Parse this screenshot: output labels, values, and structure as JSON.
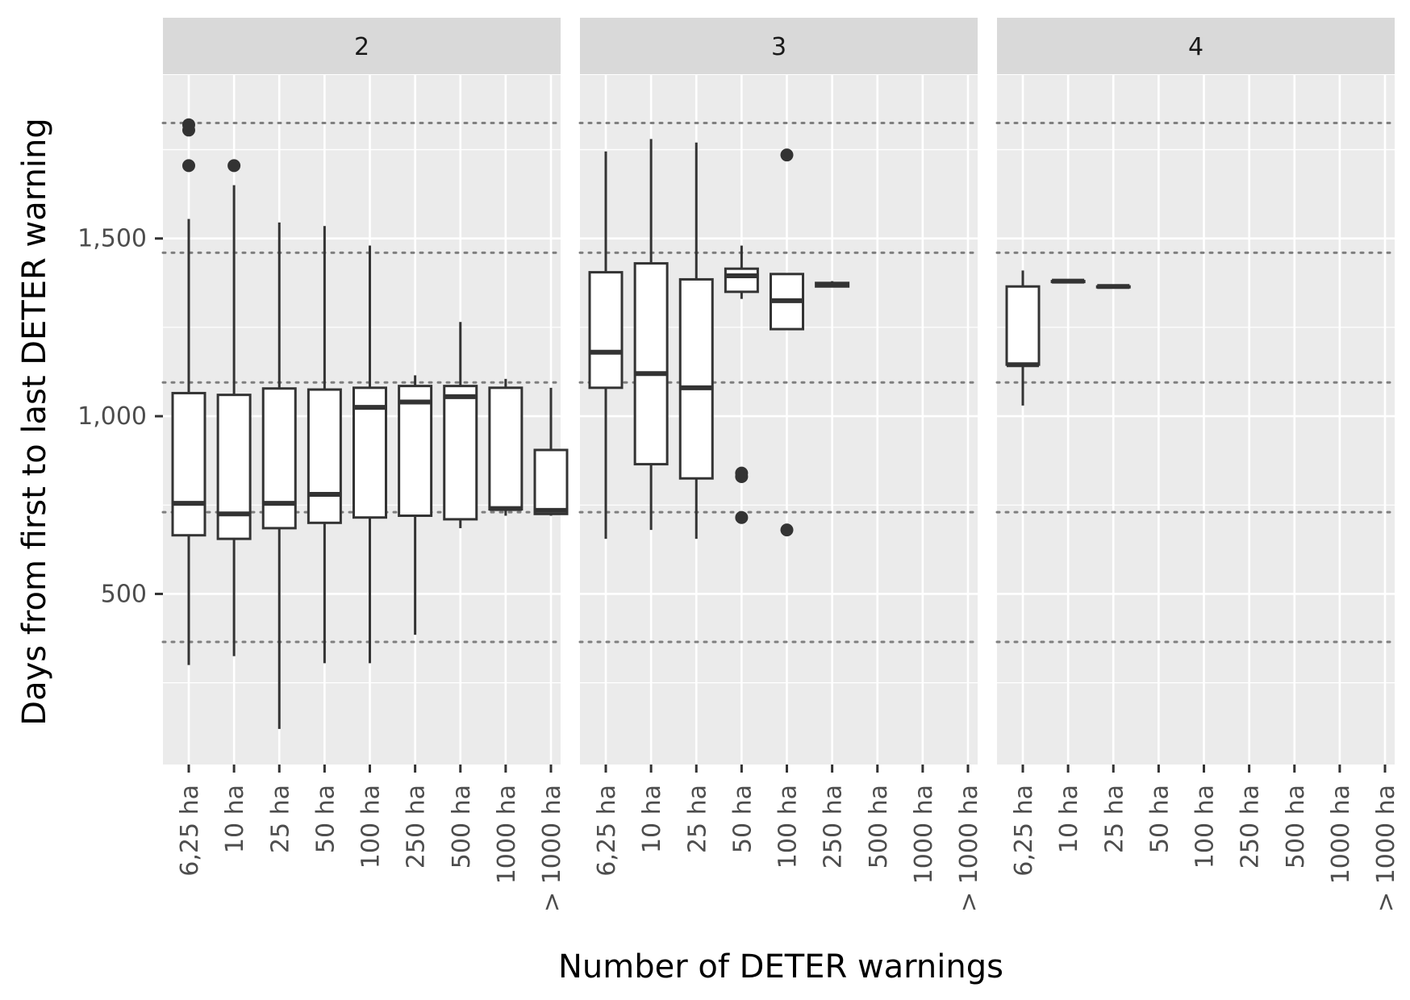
{
  "chart_data": {
    "type": "box",
    "title": "",
    "xlabel": "Number of DETER warnings",
    "ylabel": "Days from first to last DETER warning",
    "ylim": [
      20,
      1960
    ],
    "yticks": [
      500,
      1000,
      1500
    ],
    "ytick_labels": [
      "500",
      "1,000",
      "1,500"
    ],
    "reference_lines": [
      365,
      730,
      1095,
      1460,
      1825
    ],
    "categories": [
      "6,25 ha",
      "10 ha",
      "25 ha",
      "50 ha",
      "100 ha",
      "250 ha",
      "500 ha",
      "1000 ha",
      "> 1000 ha"
    ],
    "grid": true,
    "colors": {
      "panel_background": "#ebebeb",
      "strip_background": "#d9d9d9",
      "grid": "#ffffff",
      "box_fill": "#ffffff",
      "box_stroke": "#333333",
      "reference_line": "#7f7f7f"
    },
    "panels": [
      {
        "label": "2",
        "boxes": [
          {
            "category": "6,25 ha",
            "whisker_low": 300,
            "q1": 665,
            "median": 755,
            "q3": 1065,
            "whisker_high": 1555,
            "outliers": [
              1705,
              1805,
              1820
            ]
          },
          {
            "category": "10 ha",
            "whisker_low": 325,
            "q1": 655,
            "median": 725,
            "q3": 1060,
            "whisker_high": 1650,
            "outliers": [
              1705
            ]
          },
          {
            "category": "25 ha",
            "whisker_low": 120,
            "q1": 685,
            "median": 755,
            "q3": 1078,
            "whisker_high": 1545,
            "outliers": []
          },
          {
            "category": "50 ha",
            "whisker_low": 305,
            "q1": 700,
            "median": 780,
            "q3": 1075,
            "whisker_high": 1535,
            "outliers": []
          },
          {
            "category": "100 ha",
            "whisker_low": 305,
            "q1": 715,
            "median": 1025,
            "q3": 1080,
            "whisker_high": 1480,
            "outliers": []
          },
          {
            "category": "250 ha",
            "whisker_low": 385,
            "q1": 720,
            "median": 1040,
            "q3": 1085,
            "whisker_high": 1115,
            "outliers": []
          },
          {
            "category": "500 ha",
            "whisker_low": 685,
            "q1": 710,
            "median": 1055,
            "q3": 1085,
            "whisker_high": 1265,
            "outliers": []
          },
          {
            "category": "1000 ha",
            "whisker_low": 720,
            "q1": 738,
            "median": 740,
            "q3": 1080,
            "whisker_high": 1105,
            "outliers": []
          },
          {
            "category": "> 1000 ha",
            "whisker_low": 720,
            "q1": 725,
            "median": 735,
            "q3": 905,
            "whisker_high": 1080,
            "outliers": []
          }
        ]
      },
      {
        "label": "3",
        "boxes": [
          {
            "category": "6,25 ha",
            "whisker_low": 655,
            "q1": 1080,
            "median": 1180,
            "q3": 1405,
            "whisker_high": 1745,
            "outliers": []
          },
          {
            "category": "10 ha",
            "whisker_low": 680,
            "q1": 865,
            "median": 1120,
            "q3": 1430,
            "whisker_high": 1780,
            "outliers": []
          },
          {
            "category": "25 ha",
            "whisker_low": 655,
            "q1": 825,
            "median": 1080,
            "q3": 1385,
            "whisker_high": 1770,
            "outliers": []
          },
          {
            "category": "50 ha",
            "whisker_low": 1330,
            "q1": 1350,
            "median": 1395,
            "q3": 1415,
            "whisker_high": 1480,
            "outliers": [
              715,
              830,
              840
            ]
          },
          {
            "category": "100 ha",
            "whisker_low": 1245,
            "q1": 1245,
            "median": 1325,
            "q3": 1400,
            "whisker_high": 1400,
            "outliers": [
              680,
              1735
            ]
          },
          {
            "category": "250 ha",
            "whisker_low": 1365,
            "q1": 1365,
            "median": 1370,
            "q3": 1375,
            "whisker_high": 1380,
            "outliers": []
          }
        ]
      },
      {
        "label": "4",
        "boxes": [
          {
            "category": "6,25 ha",
            "whisker_low": 1030,
            "q1": 1145,
            "median": 1145,
            "q3": 1365,
            "whisker_high": 1410,
            "outliers": []
          },
          {
            "category": "10 ha",
            "whisker_low": 1380,
            "q1": 1380,
            "median": 1380,
            "q3": 1380,
            "whisker_high": 1380,
            "outliers": []
          },
          {
            "category": "25 ha",
            "whisker_low": 1365,
            "q1": 1365,
            "median": 1365,
            "q3": 1365,
            "whisker_high": 1365,
            "outliers": []
          }
        ]
      }
    ]
  }
}
